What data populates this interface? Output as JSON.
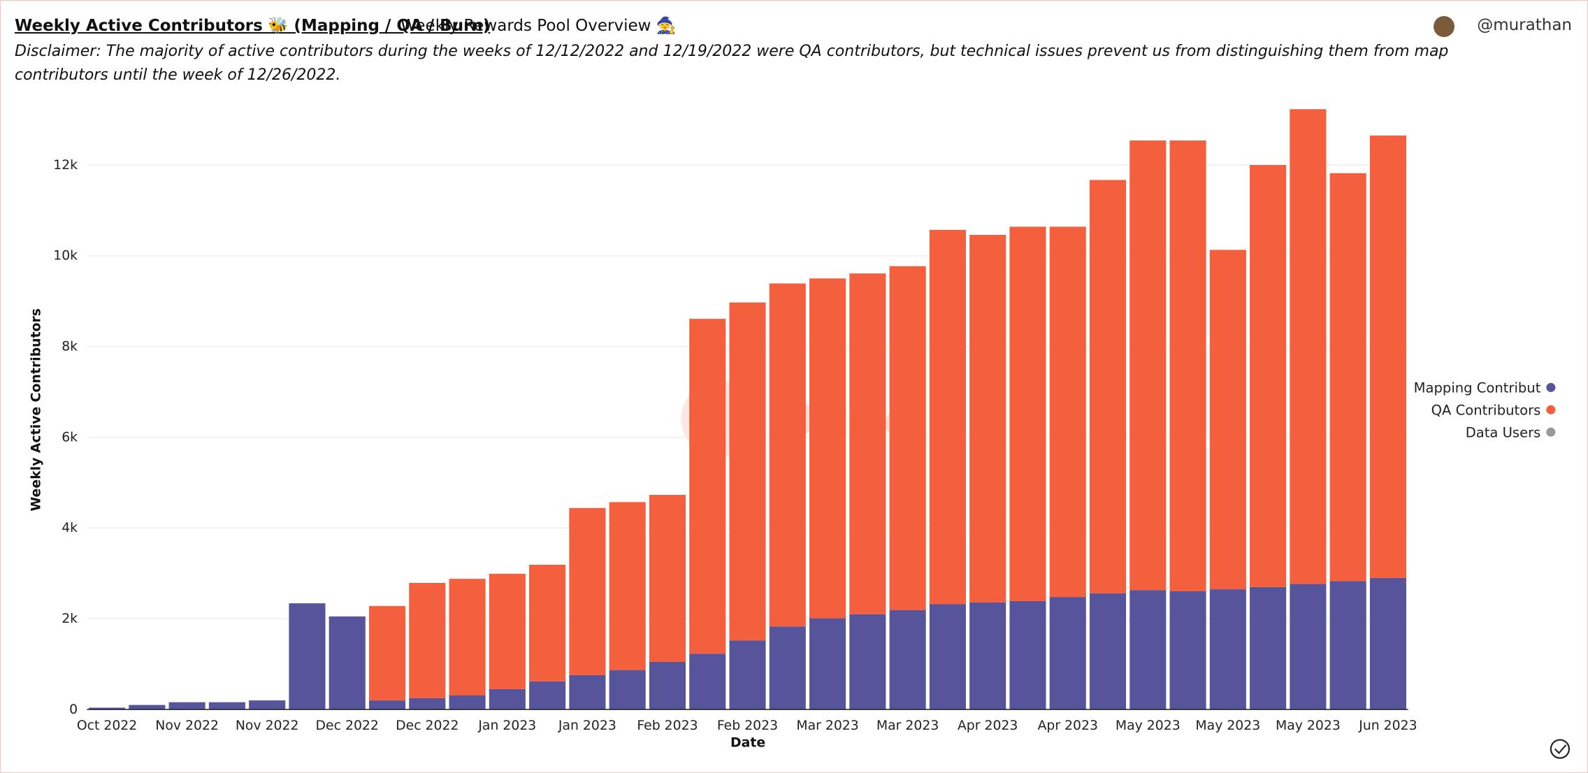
{
  "header": {
    "title": "Weekly Active Contributors 🐝 (Mapping / QA / Burn)",
    "tab": "Weekly Rewards Pool Overview 🧙",
    "user": "@murathan",
    "disclaimer": "Disclaimer: The majority of active contributors during the weeks of 12/12/2022 and 12/19/2022 were QA contributors, but technical issues prevent us from distinguishing them from map contributors until the week of 12/26/2022."
  },
  "chart_data": {
    "type": "bar",
    "stacked": true,
    "watermark": "Dune",
    "x_label": "Date",
    "y_label": "Weekly Active Contributors",
    "categories": [
      "Oct 2022",
      null,
      "Nov 2022",
      null,
      "Nov 2022",
      null,
      "Dec 2022",
      null,
      "Dec 2022",
      null,
      "Jan 2023",
      null,
      "Jan 2023",
      null,
      "Feb 2023",
      null,
      "Feb 2023",
      null,
      "Mar 2023",
      null,
      "Mar 2023",
      null,
      "Apr 2023",
      null,
      "Apr 2023",
      null,
      "May 2023",
      null,
      "May 2023",
      null,
      "May 2023",
      null,
      "Jun 2023"
    ],
    "series": [
      {
        "name": "Mapping Contribut",
        "color": "#56559c",
        "values": [
          40,
          100,
          160,
          160,
          200,
          2340,
          2050,
          200,
          250,
          310,
          450,
          620,
          760,
          870,
          1050,
          1230,
          1520,
          1830,
          2010,
          2100,
          2190,
          2320,
          2360,
          2390,
          2480,
          2560,
          2630,
          2610,
          2650,
          2700,
          2770,
          2830,
          2900
        ]
      },
      {
        "name": "QA Contributors",
        "color": "#f4603e",
        "values": [
          null,
          null,
          null,
          null,
          null,
          null,
          null,
          2080,
          2540,
          2570,
          2540,
          2570,
          3680,
          3700,
          3680,
          7380,
          7450,
          7560,
          7490,
          7510,
          7580,
          8250,
          8100,
          8250,
          8160,
          9110,
          9910,
          9930,
          7480,
          9300,
          10460,
          8990,
          9750
        ]
      },
      {
        "name": "Data Users",
        "color": "#999999",
        "values": [
          null,
          null,
          null,
          null,
          null,
          null,
          null,
          null,
          null,
          null,
          null,
          null,
          null,
          null,
          null,
          null,
          null,
          null,
          null,
          null,
          null,
          null,
          null,
          null,
          null,
          null,
          null,
          null,
          null,
          null,
          null,
          null,
          null
        ]
      }
    ],
    "ylim": [
      0,
      13500
    ],
    "yticks": [
      0,
      {
        "value": 2000,
        "label": "2k"
      },
      {
        "value": 4000,
        "label": "4k"
      },
      {
        "value": 6000,
        "label": "6k"
      },
      {
        "value": 8000,
        "label": "8k"
      },
      {
        "value": 10000,
        "label": "10k"
      },
      {
        "value": 12000,
        "label": "12k"
      }
    ],
    "grid": true,
    "legend": "right"
  }
}
